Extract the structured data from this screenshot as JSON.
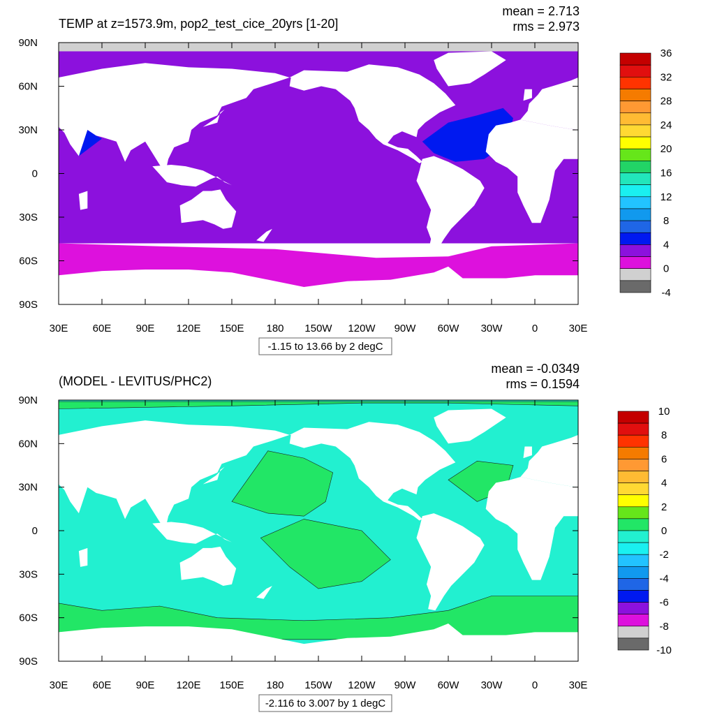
{
  "chart_data": [
    {
      "type": "heatmap",
      "title": "TEMP at z=1573.9m, pop2_test_cice_20yrs [1-20]",
      "stats": {
        "mean": "mean = 2.713",
        "rms": "rms = 2.973"
      },
      "xticks": [
        "30E",
        "60E",
        "90E",
        "120E",
        "150E",
        "180",
        "150W",
        "120W",
        "90W",
        "60W",
        "30W",
        "0",
        "30E"
      ],
      "yticks": [
        "90N",
        "60N",
        "30N",
        "0",
        "30S",
        "60S",
        "90S"
      ],
      "xlim": [
        30,
        390
      ],
      "ylim": [
        -90,
        90
      ],
      "contour_info": "-1.15 to 13.66 by 2 degC",
      "colorbar": {
        "labels": [
          "36",
          "32",
          "28",
          "24",
          "20",
          "16",
          "12",
          "8",
          "4",
          "0",
          "-4"
        ],
        "colors": [
          "#c40000",
          "#e10f0f",
          "#ff3300",
          "#f57b00",
          "#ff9933",
          "#ffbb33",
          "#ffd933",
          "#ffff00",
          "#66e61a",
          "#22d466",
          "#22e6bb",
          "#1af0f0",
          "#22c3ff",
          "#1199ee",
          "#1f66e6",
          "#0019f0",
          "#8c11dd",
          "#dd11dd",
          "#d0d0d0",
          "#6a6a6a"
        ]
      },
      "field_colors": {
        "band_60s": "#dd11dd",
        "ocean": "#8c11dd",
        "warm": "#0019f0",
        "ice": "#d0d0d0"
      }
    },
    {
      "type": "heatmap",
      "title": "(MODEL - LEVITUS/PHC2)",
      "stats": {
        "mean": "mean = -0.0349",
        "rms": "rms = 0.1594"
      },
      "xticks": [
        "30E",
        "60E",
        "90E",
        "120E",
        "150E",
        "180",
        "150W",
        "120W",
        "90W",
        "60W",
        "30W",
        "0",
        "30E"
      ],
      "yticks": [
        "90N",
        "60N",
        "30N",
        "0",
        "30S",
        "60S",
        "90S"
      ],
      "xlim": [
        30,
        390
      ],
      "ylim": [
        -90,
        90
      ],
      "contour_info": "-2.116 to 3.007 by 1 degC",
      "colorbar": {
        "labels": [
          "10",
          "8",
          "6",
          "4",
          "2",
          "0",
          "-2",
          "-4",
          "-6",
          "-8",
          "-10"
        ],
        "colors": [
          "#c40000",
          "#e10f0f",
          "#ff3300",
          "#f57b00",
          "#ff9933",
          "#ffbb33",
          "#ffd933",
          "#ffff00",
          "#66e61a",
          "#22e666",
          "#22f0d0",
          "#1af0f0",
          "#22c3ff",
          "#1199ee",
          "#1f66e6",
          "#0019f0",
          "#8c11dd",
          "#dd11dd",
          "#d0d0d0",
          "#6a6a6a"
        ]
      },
      "field_colors": {
        "positive": "#22e666",
        "negative": "#22f0d0"
      }
    }
  ]
}
